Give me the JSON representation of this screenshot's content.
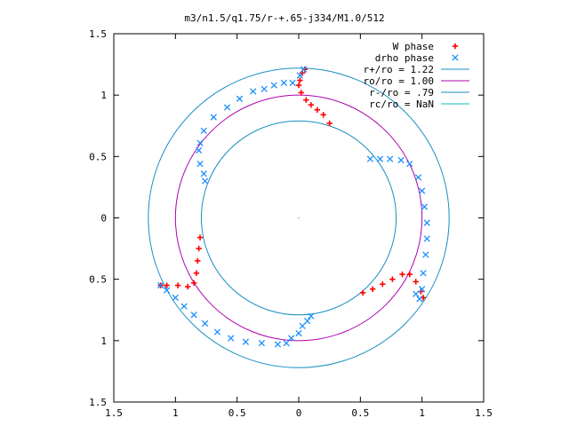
{
  "chart_data": {
    "type": "scatter",
    "title": "m3/n1.5/q1.75/r-+.65-j334/M1.0/512",
    "xlim": [
      -1.5,
      1.5
    ],
    "ylim": [
      -1.5,
      1.5
    ],
    "x_ticks": [
      {
        "value": -1.5,
        "label": "1.5"
      },
      {
        "value": -1.0,
        "label": "1"
      },
      {
        "value": -0.5,
        "label": "0.5"
      },
      {
        "value": 0.0,
        "label": "0"
      },
      {
        "value": 0.5,
        "label": "0.5"
      },
      {
        "value": 1.0,
        "label": "1"
      },
      {
        "value": 1.5,
        "label": "1.5"
      }
    ],
    "y_ticks": [
      {
        "value": 1.5,
        "label": "1.5"
      },
      {
        "value": 1.0,
        "label": "1"
      },
      {
        "value": 0.5,
        "label": "0.5"
      },
      {
        "value": 0.0,
        "label": "0"
      },
      {
        "value": -0.5,
        "label": "0.5"
      },
      {
        "value": -1.0,
        "label": "1"
      },
      {
        "value": -1.5,
        "label": "1.5"
      }
    ],
    "legend_position": "top-right",
    "circles": [
      {
        "name": "r+/ro = 1.22",
        "radius": 1.22,
        "color": "#1a8fc0"
      },
      {
        "name": "ro/ro = 1.00",
        "radius": 1.0,
        "color": "#b000b0"
      },
      {
        "name": "r-/ro = .79",
        "radius": 0.79,
        "color": "#1a8fc0"
      },
      {
        "name": "rc/ro = NaN",
        "radius": null,
        "color": "#00c0c0"
      }
    ],
    "series": [
      {
        "name": "W phase",
        "marker": "plus",
        "color": "#ff0000",
        "points": [
          [
            0.05,
            1.21
          ],
          [
            0.03,
            1.18
          ],
          [
            0.01,
            1.12
          ],
          [
            0.0,
            1.08
          ],
          [
            0.02,
            1.02
          ],
          [
            0.06,
            0.96
          ],
          [
            0.1,
            0.92
          ],
          [
            0.15,
            0.88
          ],
          [
            0.2,
            0.84
          ],
          [
            0.25,
            0.77
          ],
          [
            -0.8,
            -0.16
          ],
          [
            -0.81,
            -0.25
          ],
          [
            -0.82,
            -0.35
          ],
          [
            -0.83,
            -0.45
          ],
          [
            -0.85,
            -0.53
          ],
          [
            -0.9,
            -0.56
          ],
          [
            -0.98,
            -0.55
          ],
          [
            -1.07,
            -0.55
          ],
          [
            -1.12,
            -0.55
          ],
          [
            0.52,
            -0.61
          ],
          [
            0.6,
            -0.58
          ],
          [
            0.68,
            -0.54
          ],
          [
            0.76,
            -0.5
          ],
          [
            0.84,
            -0.46
          ],
          [
            0.9,
            -0.46
          ],
          [
            0.95,
            -0.52
          ],
          [
            0.99,
            -0.6
          ],
          [
            1.01,
            -0.65
          ]
        ]
      },
      {
        "name": "drho phase",
        "marker": "x",
        "color": "#1a8fff",
        "points": [
          [
            0.04,
            1.21
          ],
          [
            0.01,
            1.16
          ],
          [
            -0.05,
            1.1
          ],
          [
            -0.12,
            1.1
          ],
          [
            -0.2,
            1.08
          ],
          [
            -0.28,
            1.05
          ],
          [
            -0.37,
            1.03
          ],
          [
            -0.48,
            0.97
          ],
          [
            -0.58,
            0.9
          ],
          [
            -0.69,
            0.82
          ],
          [
            -0.77,
            0.71
          ],
          [
            -0.8,
            0.61
          ],
          [
            -0.81,
            0.55
          ],
          [
            -0.8,
            0.44
          ],
          [
            -0.77,
            0.36
          ],
          [
            -0.76,
            0.3
          ],
          [
            0.58,
            0.48
          ],
          [
            0.66,
            0.48
          ],
          [
            0.74,
            0.48
          ],
          [
            0.83,
            0.47
          ],
          [
            0.9,
            0.44
          ],
          [
            0.97,
            0.33
          ],
          [
            1.0,
            0.22
          ],
          [
            1.02,
            0.09
          ],
          [
            1.04,
            -0.04
          ],
          [
            1.04,
            -0.17
          ],
          [
            1.03,
            -0.3
          ],
          [
            1.01,
            -0.45
          ],
          [
            1.0,
            -0.58
          ],
          [
            0.98,
            -0.66
          ],
          [
            0.95,
            -0.62
          ],
          [
            -1.12,
            -0.55
          ],
          [
            -1.07,
            -0.59
          ],
          [
            -1.0,
            -0.65
          ],
          [
            -0.93,
            -0.72
          ],
          [
            -0.85,
            -0.79
          ],
          [
            -0.76,
            -0.86
          ],
          [
            -0.66,
            -0.93
          ],
          [
            -0.55,
            -0.98
          ],
          [
            -0.43,
            -1.01
          ],
          [
            -0.3,
            -1.02
          ],
          [
            -0.17,
            -1.03
          ],
          [
            -0.1,
            -1.02
          ],
          [
            -0.06,
            -0.98
          ],
          [
            0.0,
            -0.94
          ],
          [
            0.03,
            -0.88
          ],
          [
            0.07,
            -0.84
          ],
          [
            0.1,
            -0.8
          ]
        ]
      }
    ],
    "center_marker": [
      0.0,
      0.0
    ]
  }
}
